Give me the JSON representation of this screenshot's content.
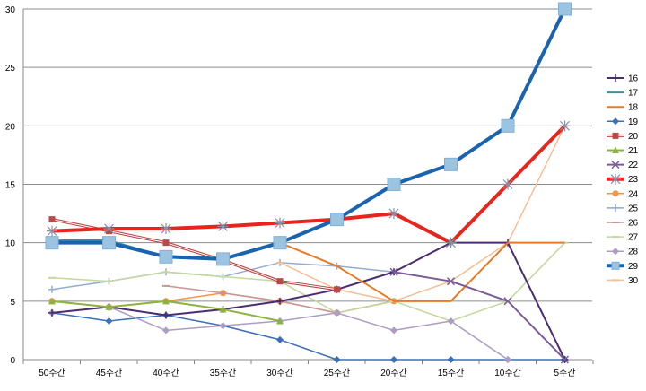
{
  "chart_data": {
    "type": "line",
    "categories": [
      "50주간",
      "45주간",
      "40주간",
      "35주간",
      "30주간",
      "25주간",
      "20주간",
      "15주간",
      "10주간",
      "5주간"
    ],
    "ylim": [
      0,
      30
    ],
    "yticks": [
      "0",
      "5",
      "10",
      "15",
      "20",
      "25",
      "30"
    ],
    "grid": "horizontal",
    "legend_position": "right",
    "series": [
      {
        "name": "16",
        "color": "#4b2c72",
        "marker": "plus",
        "width": 2,
        "values": [
          4,
          4.5,
          3.8,
          4.3,
          5,
          6,
          7.5,
          10,
          10,
          0
        ]
      },
      {
        "name": "17",
        "color": "#3592a8",
        "marker": "none",
        "width": 2,
        "values": [
          10.2,
          10.2,
          8.8,
          8.6,
          10,
          null,
          null,
          null,
          null,
          null
        ]
      },
      {
        "name": "18",
        "color": "#e77a26",
        "marker": "none",
        "width": 2,
        "values": [
          null,
          null,
          null,
          null,
          10,
          8,
          5,
          5,
          10,
          10
        ]
      },
      {
        "name": "19",
        "color": "#3b6fb6",
        "marker": "diamond",
        "width": 1.5,
        "values": [
          4,
          3.3,
          3.8,
          2.9,
          1.7,
          0,
          0,
          0,
          0,
          0
        ]
      },
      {
        "name": "20",
        "color": "#b84a48",
        "marker": "square",
        "width": 2,
        "values": [
          12,
          11,
          10,
          8.5,
          6.7,
          6,
          null,
          null,
          null,
          null
        ]
      },
      {
        "name": "21",
        "color": "#8db33e",
        "marker": "triangle",
        "width": 2,
        "values": [
          5,
          4.5,
          5,
          4.3,
          3.3,
          null,
          null,
          null,
          null,
          null
        ]
      },
      {
        "name": "22",
        "color": "#7a5c98",
        "marker": "x",
        "width": 2,
        "values": [
          null,
          null,
          null,
          null,
          null,
          null,
          7.5,
          6.7,
          5,
          0
        ]
      },
      {
        "name": "23",
        "color": "#e8251c",
        "marker": "star",
        "width": 4,
        "values": [
          11,
          11.2,
          11.2,
          11.4,
          11.7,
          12,
          12.5,
          10,
          15,
          20
        ]
      },
      {
        "name": "24",
        "color": "#f0974a",
        "marker": "circle",
        "width": 1.5,
        "values": [
          5,
          4.5,
          5,
          5.7,
          5,
          4,
          5,
          null,
          null,
          null
        ]
      },
      {
        "name": "25",
        "color": "#93acd2",
        "marker": "plus",
        "width": 1.5,
        "values": [
          6,
          6.7,
          7.5,
          7.1,
          8.3,
          8,
          7.5,
          10,
          null,
          null
        ]
      },
      {
        "name": "26",
        "color": "#c99595",
        "marker": "dash",
        "width": 1.5,
        "values": [
          null,
          null,
          6.3,
          5.7,
          5,
          4,
          5,
          null,
          null,
          null
        ]
      },
      {
        "name": "27",
        "color": "#c2d89c",
        "marker": "dash",
        "width": 1.5,
        "values": [
          7,
          6.7,
          7.5,
          7.1,
          6.7,
          4,
          5,
          3.3,
          5,
          10
        ]
      },
      {
        "name": "28",
        "color": "#ad9cc6",
        "marker": "diamond",
        "width": 1.5,
        "values": [
          4,
          4.5,
          2.5,
          2.9,
          3.3,
          4,
          2.5,
          3.3,
          0,
          null
        ]
      },
      {
        "name": "29",
        "color": "#1a63ae",
        "marker": "square-big",
        "width": 4,
        "values": [
          10,
          10,
          8.8,
          8.6,
          10,
          12,
          15,
          16.7,
          20,
          30
        ]
      },
      {
        "name": "30",
        "color": "#f6bf95",
        "marker": "dash",
        "width": 1.5,
        "values": [
          null,
          null,
          null,
          null,
          8.3,
          6,
          5,
          6.7,
          10,
          20
        ]
      }
    ]
  }
}
